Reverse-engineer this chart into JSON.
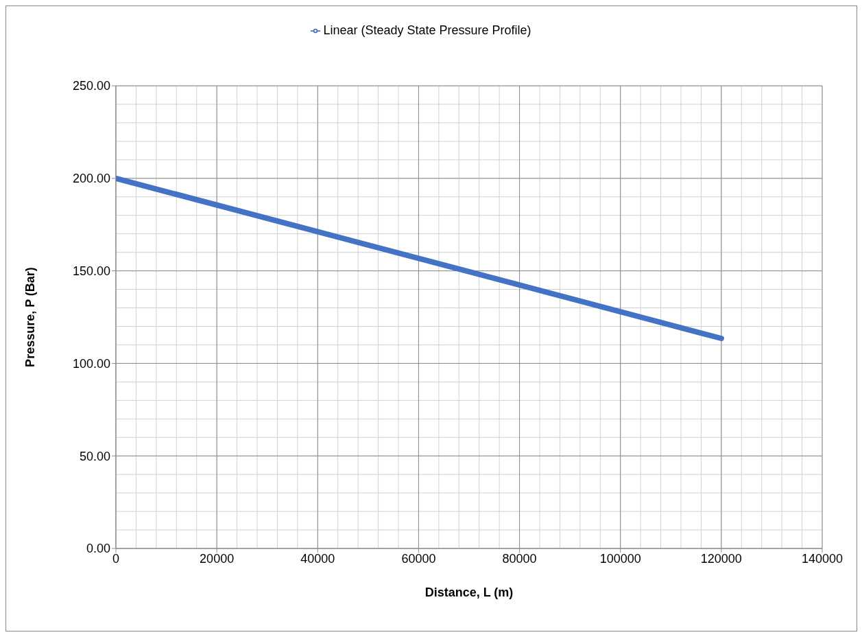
{
  "chart_data": {
    "type": "line",
    "xlabel": "Distance, L (m)",
    "ylabel": "Pressure, P (Bar)",
    "series": [
      {
        "name": "Linear (Steady State Pressure Profile)",
        "color": "#4472c4",
        "x": [
          0,
          120000
        ],
        "values": [
          200,
          113.5
        ]
      }
    ],
    "xlim": [
      0,
      140000
    ],
    "xticks": [
      0,
      20000,
      40000,
      60000,
      80000,
      100000,
      120000,
      140000
    ],
    "ylim": [
      0,
      250
    ],
    "yticks": [
      {
        "value": 0,
        "label": "0.00"
      },
      {
        "value": 50,
        "label": "50.00"
      },
      {
        "value": 100,
        "label": "100.00"
      },
      {
        "value": 150,
        "label": "150.00"
      },
      {
        "value": 200,
        "label": "200.00"
      },
      {
        "value": 250,
        "label": "250.00"
      }
    ],
    "grid": true,
    "legend": "top",
    "marker": "none",
    "line_style": "solid"
  }
}
